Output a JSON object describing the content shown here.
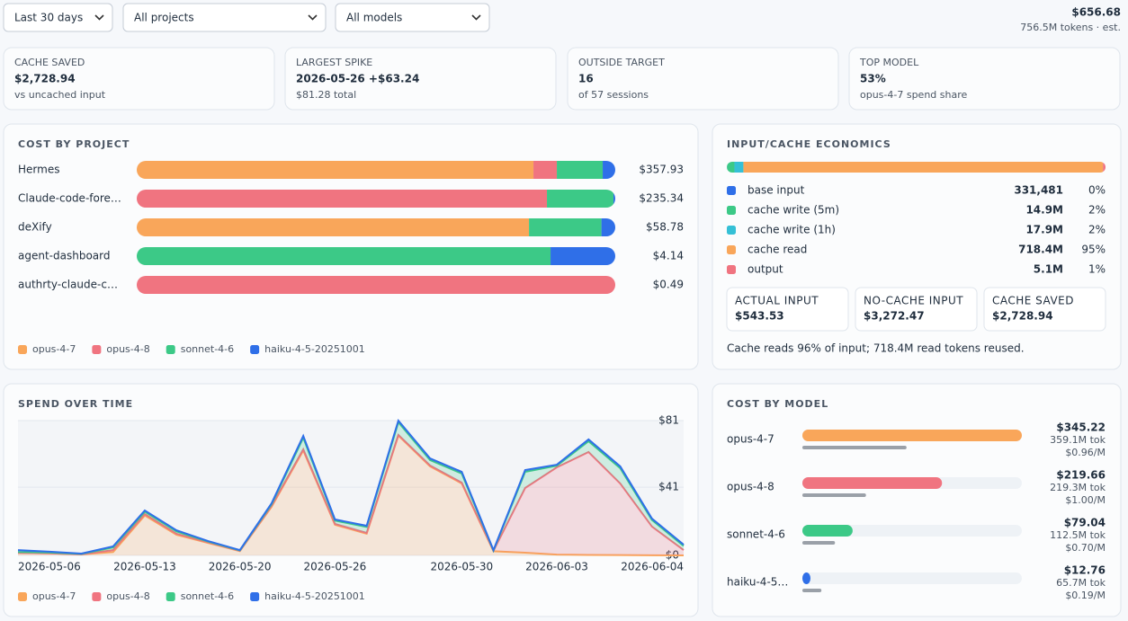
{
  "filters": {
    "range": "Last 30 days",
    "project": "All projects",
    "model": "All models"
  },
  "total": {
    "cost": "$656.68",
    "tokens": "756.5M tokens · est."
  },
  "kpis": [
    {
      "label": "CACHE SAVED",
      "value": "$2,728.94",
      "sub": "vs uncached input"
    },
    {
      "label": "LARGEST SPIKE",
      "value": "2026-05-26 +$63.24",
      "sub": "$81.28 total"
    },
    {
      "label": "OUTSIDE TARGET",
      "value": "16",
      "sub": "of 57 sessions"
    },
    {
      "label": "TOP MODEL",
      "value": "53%",
      "sub": "opus-4-7 spend share"
    }
  ],
  "cost_by_project": {
    "title": "COST BY PROJECT",
    "projects": [
      {
        "name": "Hermes",
        "total": "$357.93",
        "segments": [
          296.7,
          17.5,
          34.3,
          9.4
        ]
      },
      {
        "name": "Claude-code-fore…",
        "total": "$235.34",
        "segments": [
          0,
          201.7,
          32.7,
          0.9
        ]
      },
      {
        "name": "deXify",
        "total": "$58.78",
        "segments": [
          48.2,
          0,
          8.9,
          1.7
        ]
      },
      {
        "name": "agent-dashboard",
        "total": "$4.14",
        "segments": [
          0,
          0,
          3.58,
          0.56
        ]
      },
      {
        "name": "authrty-claude-c…",
        "total": "$0.49",
        "segments": [
          0,
          0.49,
          0,
          0
        ]
      }
    ],
    "legend": [
      {
        "name": "opus-4-7",
        "color": "#f9a65a"
      },
      {
        "name": "opus-4-8",
        "color": "#f07480"
      },
      {
        "name": "sonnet-4-6",
        "color": "#3cc987"
      },
      {
        "name": "haiku-4-5-20251001",
        "color": "#2f6fe8"
      }
    ]
  },
  "economics": {
    "title": "INPUT/CACHE ECONOMICS",
    "rows": [
      {
        "name": "base input",
        "color": "#2f6fe8",
        "tokens": {
          "value": 331481,
          "label": "331,481"
        },
        "share": "0%"
      },
      {
        "name": "cache write (5m)",
        "color": "#3cc987",
        "tokens": {
          "value": 14900000,
          "label": "14.9M"
        },
        "share": "2%"
      },
      {
        "name": "cache write (1h)",
        "color": "#35c0d6",
        "tokens": {
          "value": 17900000,
          "label": "17.9M"
        },
        "share": "2%"
      },
      {
        "name": "cache read",
        "color": "#f9a65a",
        "tokens": {
          "value": 718400000,
          "label": "718.4M"
        },
        "share": "95%"
      },
      {
        "name": "output",
        "color": "#f07480",
        "tokens": {
          "value": 5100000,
          "label": "5.1M"
        },
        "share": "1%"
      }
    ],
    "cards": [
      {
        "label": "ACTUAL INPUT",
        "value": "$543.53"
      },
      {
        "label": "NO-CACHE INPUT",
        "value": "$3,272.47"
      },
      {
        "label": "CACHE SAVED",
        "value": "$2,728.94"
      }
    ],
    "note": "Cache reads 96% of input; 718.4M read tokens reused."
  },
  "spend_over_time": {
    "title": "SPEND OVER TIME",
    "type": "area",
    "stacked": true,
    "grid": true,
    "categories": [
      "2026-05-06",
      null,
      null,
      null,
      "2026-05-13",
      null,
      null,
      "2026-05-20",
      null,
      null,
      "2026-05-26",
      null,
      null,
      null,
      "2026-05-30",
      null,
      null,
      "2026-06-03",
      null,
      null,
      null,
      "2026-06-04"
    ],
    "ylim": [
      0,
      81
    ],
    "yticks": [
      {
        "value": 0,
        "label": "$0"
      },
      {
        "value": 41,
        "label": "$41"
      },
      {
        "value": 81,
        "label": "$81"
      }
    ],
    "series": [
      {
        "name": "opus-4-7",
        "color": "#f9a65a",
        "values": [
          1.5,
          1.2,
          0.6,
          2,
          24,
          12.4,
          7.5,
          2.6,
          29.2,
          63,
          18.4,
          13,
          72,
          53.5,
          43.2,
          2.5,
          1.6,
          0.5,
          0.3,
          0.2,
          0.1,
          0
        ]
      },
      {
        "name": "opus-4-8",
        "color": "#f07480",
        "values": [
          0,
          0,
          0,
          1.2,
          0.8,
          0.6,
          0.3,
          0.1,
          0.5,
          0.7,
          0.5,
          0.5,
          0.4,
          0.5,
          0.5,
          0.2,
          38.9,
          52.4,
          61.8,
          43,
          17.2,
          3.2
        ]
      },
      {
        "name": "sonnet-4-6",
        "color": "#3cc987",
        "values": [
          0.5,
          0.5,
          0.3,
          1.6,
          1.5,
          1.4,
          0.5,
          0.3,
          1,
          7,
          2,
          3.6,
          7.6,
          3.3,
          5.5,
          0.2,
          9.7,
          1,
          6.5,
          9.2,
          4,
          2.5
        ]
      },
      {
        "name": "haiku-4-5-20251001",
        "color": "#2f6fe8",
        "values": [
          1.2,
          0.5,
          0.2,
          0.6,
          0.7,
          0.7,
          0.3,
          0.2,
          0.6,
          1.1,
          0.7,
          0.7,
          1,
          1,
          1,
          0.3,
          1.1,
          0.6,
          1.1,
          1.1,
          0.8,
          0.8
        ]
      }
    ]
  },
  "cost_by_model": {
    "title": "COST BY MODEL",
    "rows": [
      {
        "name": "opus-4-7",
        "color": "#f9a65a",
        "cost": {
          "value": 345.22,
          "label": "$345.22"
        },
        "tokens": {
          "value": 359100000,
          "label": "359.1M tok"
        },
        "rate": "$0.96/M"
      },
      {
        "name": "opus-4-8",
        "color": "#f07480",
        "cost": {
          "value": 219.66,
          "label": "$219.66"
        },
        "tokens": {
          "value": 219300000,
          "label": "219.3M tok"
        },
        "rate": "$1.00/M"
      },
      {
        "name": "sonnet-4-6",
        "color": "#3cc987",
        "cost": {
          "value": 79.04,
          "label": "$79.04"
        },
        "tokens": {
          "value": 112500000,
          "label": "112.5M tok"
        },
        "rate": "$0.70/M"
      },
      {
        "name": "haiku-4-5…",
        "color": "#2f6fe8",
        "cost": {
          "value": 12.76,
          "label": "$12.76"
        },
        "tokens": {
          "value": 65700000,
          "label": "65.7M tok"
        },
        "rate": "$0.19/M"
      }
    ]
  }
}
